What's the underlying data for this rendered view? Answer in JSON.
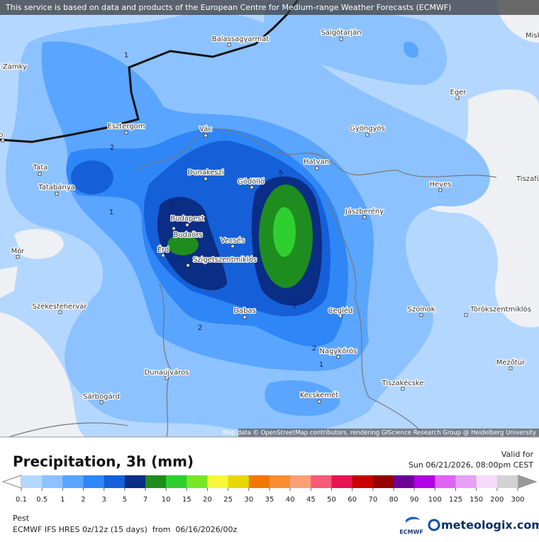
{
  "header_notice": "This service is based on data and products of the European Centre for Medium-range Weather Forecasts (ECMWF)",
  "map": {
    "cities": [
      "Nové Zámky",
      "Balassagyarmat",
      "Salgótarján",
      "Eger",
      "Komárno",
      "Esztergom",
      "Vác",
      "Gyöngyös",
      "Tata",
      "Dunakeszi",
      "Gödöllő",
      "Hatvan",
      "Heves",
      "Tiszafüred",
      "Tatabánya",
      "Jászberény",
      "Budapest",
      "Budaörs",
      "Érd",
      "Vecsés",
      "Szigetszentmiklós",
      "Mór",
      "Székesfehérvár",
      "Dabas",
      "Cegléd",
      "Szolnok",
      "Törökszentmiklós",
      "Nagykőrös",
      "Dunaújváros",
      "Mezőtúr",
      "Tiszakécske",
      "Sárbogárd",
      "Kecskemét",
      "Miskolc"
    ],
    "contour_labels": [
      1,
      2,
      1,
      5,
      5,
      5,
      2,
      2,
      1
    ],
    "attribution": "Map data © OpenStreetMap contributors, rendering GIScience Research Group @ Heidelberg University"
  },
  "legend": {
    "title": "Precipitation, 3h (mm)",
    "valid_label": "Valid for",
    "valid_time": "Sun 06/21/2026, 08:00pm CEST",
    "levels": [
      0.1,
      0.5,
      1,
      2,
      3,
      5,
      7,
      10,
      15,
      20,
      25,
      30,
      35,
      40,
      45,
      50,
      60,
      70,
      80,
      90,
      100,
      125,
      150,
      200,
      300
    ],
    "colors": [
      "#b4d7ff",
      "#8cc2ff",
      "#5aa5ff",
      "#2f86f7",
      "#1560d8",
      "#0a2d85",
      "#1f8c1f",
      "#2fcf2f",
      "#7ae62a",
      "#f7f73a",
      "#e6d800",
      "#f07800",
      "#fa8c32",
      "#faa078",
      "#f55a78",
      "#e61450",
      "#c80000",
      "#960000",
      "#6e0096",
      "#b400e6",
      "#dc64f0",
      "#e6a0f5",
      "#f5dcfa",
      "#d2d2d2"
    ]
  },
  "footer": {
    "region": "Pest",
    "model": "ECMWF IFS HRES 0z/12z (15 days)  from  06/16/2026/00z",
    "logo_small": "ECMWF",
    "logo_brand": "meteologix.com"
  }
}
